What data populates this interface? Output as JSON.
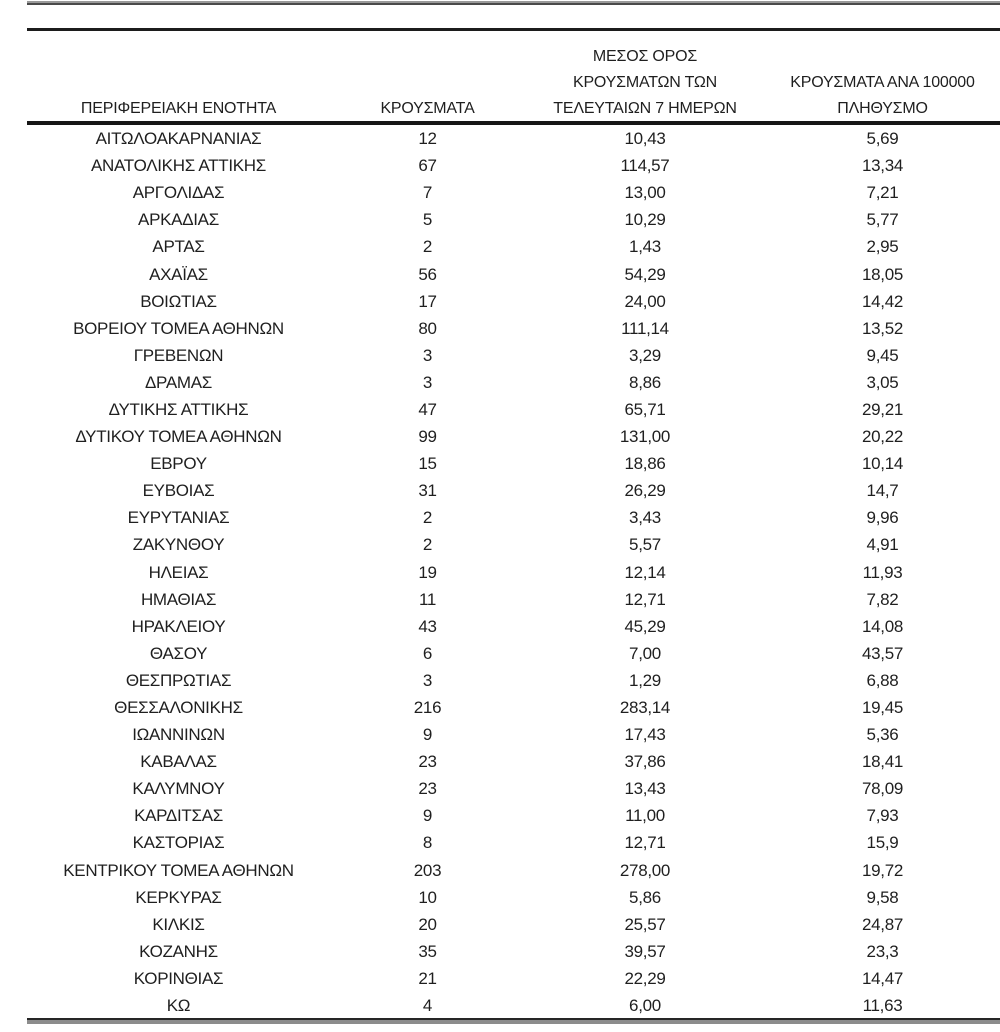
{
  "document": {
    "kind": "regional-cases-table",
    "language": "el"
  },
  "colors": {
    "background": "#ffffff",
    "text": "#1f1f1f",
    "rule_dark": "#1c1c1c",
    "rule_gray": "#8c8c8c"
  },
  "table": {
    "headers": [
      "ΠΕΡΙΦΕΡΕΙΑΚΗ ΕΝΟΤΗΤΑ",
      "ΚΡΟΥΣΜΑΤΑ",
      "ΜΕΣΟΣ ΟΡΟΣ\nΚΡΟΥΣΜΑΤΩΝ ΤΩΝ\nΤΕΛΕΥΤΑΙΩΝ 7 ΗΜΕΡΩΝ",
      "ΚΡΟΥΣΜΑΤΑ ΑΝΑ 100000\nΠΛΗΘΥΣΜΟ"
    ],
    "rows": [
      [
        "ΑΙΤΩΛΟΑΚΑΡΝΑΝΙΑΣ",
        "12",
        "10,43",
        "5,69"
      ],
      [
        "ΑΝΑΤΟΛΙΚΗΣ ΑΤΤΙΚΗΣ",
        "67",
        "114,57",
        "13,34"
      ],
      [
        "ΑΡΓΟΛΙΔΑΣ",
        "7",
        "13,00",
        "7,21"
      ],
      [
        "ΑΡΚΑΔΙΑΣ",
        "5",
        "10,29",
        "5,77"
      ],
      [
        "ΑΡΤΑΣ",
        "2",
        "1,43",
        "2,95"
      ],
      [
        "ΑΧΑΪΑΣ",
        "56",
        "54,29",
        "18,05"
      ],
      [
        "ΒΟΙΩΤΙΑΣ",
        "17",
        "24,00",
        "14,42"
      ],
      [
        "ΒΟΡΕΙΟΥ ΤΟΜΕΑ ΑΘΗΝΩΝ",
        "80",
        "111,14",
        "13,52"
      ],
      [
        "ΓΡΕΒΕΝΩΝ",
        "3",
        "3,29",
        "9,45"
      ],
      [
        "ΔΡΑΜΑΣ",
        "3",
        "8,86",
        "3,05"
      ],
      [
        "ΔΥΤΙΚΗΣ ΑΤΤΙΚΗΣ",
        "47",
        "65,71",
        "29,21"
      ],
      [
        "ΔΥΤΙΚΟΥ ΤΟΜΕΑ ΑΘΗΝΩΝ",
        "99",
        "131,00",
        "20,22"
      ],
      [
        "ΕΒΡΟΥ",
        "15",
        "18,86",
        "10,14"
      ],
      [
        "ΕΥΒΟΙΑΣ",
        "31",
        "26,29",
        "14,7"
      ],
      [
        "ΕΥΡΥΤΑΝΙΑΣ",
        "2",
        "3,43",
        "9,96"
      ],
      [
        "ΖΑΚΥΝΘΟΥ",
        "2",
        "5,57",
        "4,91"
      ],
      [
        "ΗΛΕΙΑΣ",
        "19",
        "12,14",
        "11,93"
      ],
      [
        "ΗΜΑΘΙΑΣ",
        "11",
        "12,71",
        "7,82"
      ],
      [
        "ΗΡΑΚΛΕΙΟΥ",
        "43",
        "45,29",
        "14,08"
      ],
      [
        "ΘΑΣΟΥ",
        "6",
        "7,00",
        "43,57"
      ],
      [
        "ΘΕΣΠΡΩΤΙΑΣ",
        "3",
        "1,29",
        "6,88"
      ],
      [
        "ΘΕΣΣΑΛΟΝΙΚΗΣ",
        "216",
        "283,14",
        "19,45"
      ],
      [
        "ΙΩΑΝΝΙΝΩΝ",
        "9",
        "17,43",
        "5,36"
      ],
      [
        "ΚΑΒΑΛΑΣ",
        "23",
        "37,86",
        "18,41"
      ],
      [
        "ΚΑΛΥΜΝΟΥ",
        "23",
        "13,43",
        "78,09"
      ],
      [
        "ΚΑΡΔΙΤΣΑΣ",
        "9",
        "11,00",
        "7,93"
      ],
      [
        "ΚΑΣΤΟΡΙΑΣ",
        "8",
        "12,71",
        "15,9"
      ],
      [
        "ΚΕΝΤΡΙΚΟΥ ΤΟΜΕΑ ΑΘΗΝΩΝ",
        "203",
        "278,00",
        "19,72"
      ],
      [
        "ΚΕΡΚΥΡΑΣ",
        "10",
        "5,86",
        "9,58"
      ],
      [
        "ΚΙΛΚΙΣ",
        "20",
        "25,57",
        "24,87"
      ],
      [
        "ΚΟΖΑΝΗΣ",
        "35",
        "39,57",
        "23,3"
      ],
      [
        "ΚΟΡΙΝΘΙΑΣ",
        "21",
        "22,29",
        "14,47"
      ],
      [
        "ΚΩ",
        "4",
        "6,00",
        "11,63"
      ]
    ]
  }
}
